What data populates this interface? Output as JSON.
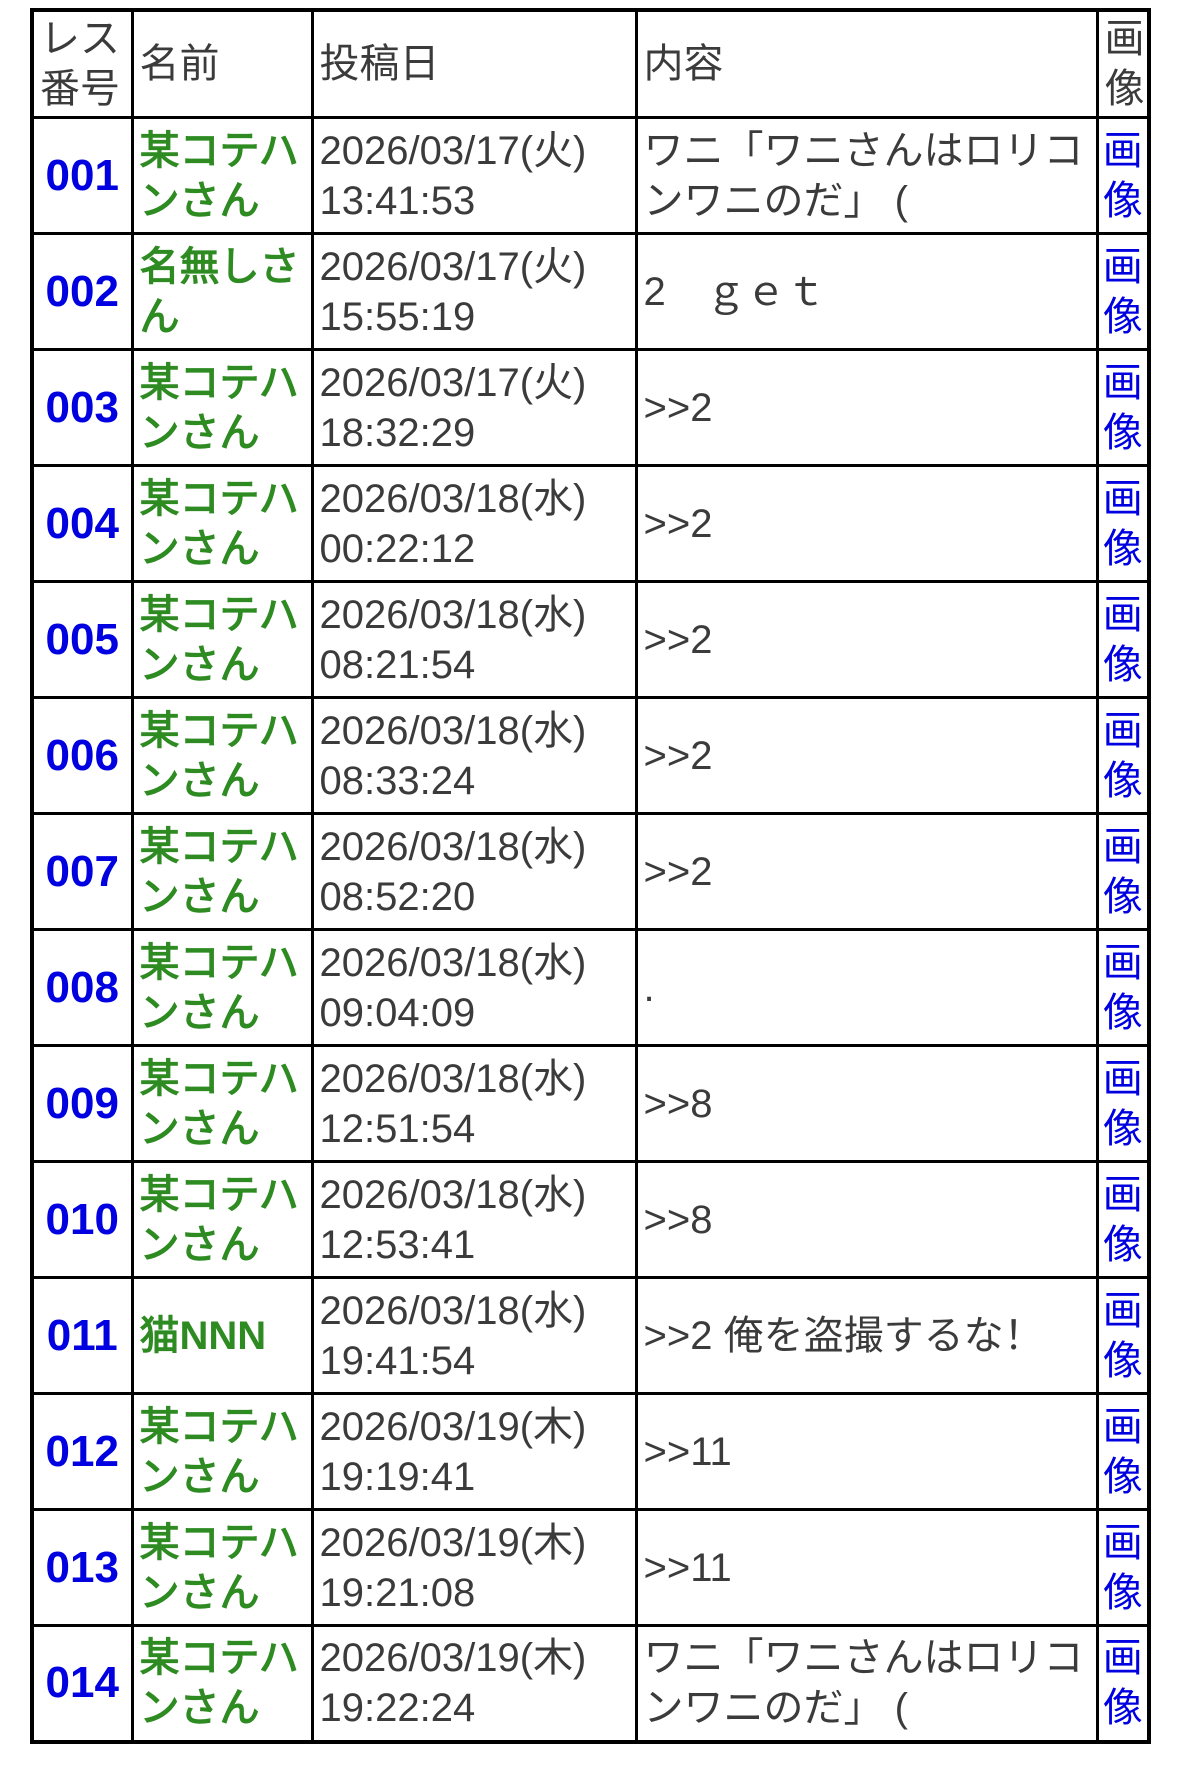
{
  "colors": {
    "link_blue": "#0000e0",
    "name_green": "#2e8b22",
    "text_gray": "#3b3b3b",
    "border_black": "#000000"
  },
  "table": {
    "headers": {
      "res_no": "レス番号",
      "name": "名前",
      "date": "投稿日",
      "content": "内容",
      "image": "画像"
    },
    "image_link_label": "画像",
    "rows": [
      {
        "no": "001",
        "name": "某コテハンさん",
        "date": "2026/03/17(火)",
        "time": "13:41:53",
        "content": "ワニ「ワニさんはロリコンワニのだ」 ("
      },
      {
        "no": "002",
        "name": "名無しさん",
        "date": "2026/03/17(火)",
        "time": "15:55:19",
        "content": "2　ｇｅｔ"
      },
      {
        "no": "003",
        "name": "某コテハンさん",
        "date": "2026/03/17(火)",
        "time": "18:32:29",
        "content": ">>2"
      },
      {
        "no": "004",
        "name": "某コテハンさん",
        "date": "2026/03/18(水)",
        "time": "00:22:12",
        "content": ">>2"
      },
      {
        "no": "005",
        "name": "某コテハンさん",
        "date": "2026/03/18(水)",
        "time": "08:21:54",
        "content": ">>2"
      },
      {
        "no": "006",
        "name": "某コテハンさん",
        "date": "2026/03/18(水)",
        "time": "08:33:24",
        "content": ">>2"
      },
      {
        "no": "007",
        "name": "某コテハンさん",
        "date": "2026/03/18(水)",
        "time": "08:52:20",
        "content": ">>2"
      },
      {
        "no": "008",
        "name": "某コテハンさん",
        "date": "2026/03/18(水)",
        "time": "09:04:09",
        "content": "."
      },
      {
        "no": "009",
        "name": "某コテハンさん",
        "date": "2026/03/18(水)",
        "time": "12:51:54",
        "content": ">>8"
      },
      {
        "no": "010",
        "name": "某コテハンさん",
        "date": "2026/03/18(水)",
        "time": "12:53:41",
        "content": ">>8"
      },
      {
        "no": "011",
        "name": "猫NNN",
        "date": "2026/03/18(水)",
        "time": "19:41:54",
        "content": ">>2 俺を盗撮するな！"
      },
      {
        "no": "012",
        "name": "某コテハンさん",
        "date": "2026/03/19(木)",
        "time": "19:19:41",
        "content": ">>11"
      },
      {
        "no": "013",
        "name": "某コテハンさん",
        "date": "2026/03/19(木)",
        "time": "19:21:08",
        "content": ">>11"
      },
      {
        "no": "014",
        "name": "某コテハンさん",
        "date": "2026/03/19(木)",
        "time": "19:22:24",
        "content": "ワニ「ワニさんはロリコンワニのだ」 ("
      }
    ]
  }
}
